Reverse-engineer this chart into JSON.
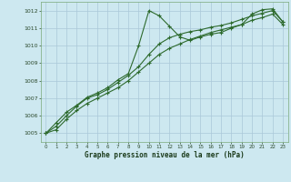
{
  "title": "Graphe pression niveau de la mer (hPa)",
  "background_color": "#cde8f0",
  "grid_color": "#aac8d8",
  "line_color": "#2d6a2d",
  "xlim": [
    -0.5,
    23.5
  ],
  "ylim": [
    1004.5,
    1012.5
  ],
  "yticks": [
    1005,
    1006,
    1007,
    1008,
    1009,
    1010,
    1011,
    1012
  ],
  "xticks": [
    0,
    1,
    2,
    3,
    4,
    5,
    6,
    7,
    8,
    9,
    10,
    11,
    12,
    13,
    14,
    15,
    16,
    17,
    18,
    19,
    20,
    21,
    22,
    23
  ],
  "series1_x": [
    0,
    1,
    2,
    3,
    4,
    5,
    6,
    7,
    8,
    9,
    10,
    11,
    12,
    13,
    14,
    15,
    16,
    17,
    18,
    19,
    20,
    21,
    22,
    23
  ],
  "series1_y": [
    1005.0,
    1005.6,
    1006.2,
    1006.6,
    1007.05,
    1007.3,
    1007.6,
    1008.05,
    1008.4,
    1010.0,
    1012.0,
    1011.7,
    1011.1,
    1010.5,
    1010.3,
    1010.5,
    1010.65,
    1010.75,
    1011.0,
    1011.2,
    1011.8,
    1012.05,
    1012.1,
    1011.35
  ],
  "series2_x": [
    0,
    1,
    2,
    3,
    4,
    5,
    6,
    7,
    8,
    9,
    10,
    11,
    12,
    13,
    14,
    15,
    16,
    17,
    18,
    19,
    20,
    21,
    22,
    23
  ],
  "series2_y": [
    1005.0,
    1005.4,
    1006.0,
    1006.55,
    1007.0,
    1007.2,
    1007.5,
    1007.9,
    1008.3,
    1008.8,
    1009.5,
    1010.1,
    1010.45,
    1010.65,
    1010.8,
    1010.9,
    1011.05,
    1011.15,
    1011.3,
    1011.5,
    1011.7,
    1011.85,
    1012.0,
    1011.35
  ],
  "series3_x": [
    0,
    1,
    2,
    3,
    4,
    5,
    6,
    7,
    8,
    9,
    10,
    11,
    12,
    13,
    14,
    15,
    16,
    17,
    18,
    19,
    20,
    21,
    22,
    23
  ],
  "series3_y": [
    1005.0,
    1005.2,
    1005.8,
    1006.3,
    1006.7,
    1007.0,
    1007.3,
    1007.6,
    1008.0,
    1008.5,
    1009.0,
    1009.5,
    1009.85,
    1010.1,
    1010.35,
    1010.55,
    1010.75,
    1010.9,
    1011.05,
    1011.2,
    1011.45,
    1011.6,
    1011.8,
    1011.2
  ]
}
